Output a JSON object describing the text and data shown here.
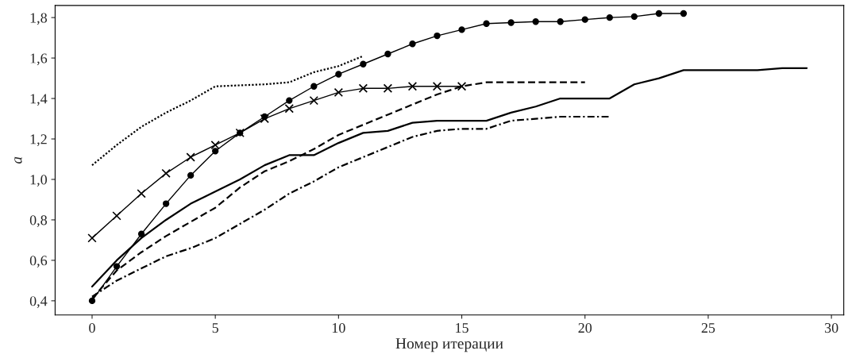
{
  "chart_data": {
    "type": "line",
    "xlabel": "Номер итерации",
    "ylabel": "a",
    "xlim": [
      -1.5,
      30.5
    ],
    "ylim": [
      0.33,
      1.86
    ],
    "xticks": [
      0,
      5,
      10,
      15,
      20,
      25,
      30
    ],
    "yticks": [
      {
        "value": 0.4,
        "label": "0,4"
      },
      {
        "value": 0.6,
        "label": "0,6"
      },
      {
        "value": 0.8,
        "label": "0,8"
      },
      {
        "value": 1.0,
        "label": "1,0"
      },
      {
        "value": 1.2,
        "label": "1,2"
      },
      {
        "value": 1.4,
        "label": "1,4"
      },
      {
        "value": 1.6,
        "label": "1,6"
      },
      {
        "value": 1.8,
        "label": "1,8"
      }
    ],
    "grid": false,
    "legend": false,
    "series": [
      {
        "color": "#000000",
        "marker": "circle",
        "line_style": "solid",
        "x": [
          0,
          1,
          2,
          3,
          4,
          5,
          6,
          7,
          8,
          9,
          10,
          11,
          12,
          13,
          14,
          15,
          16,
          17,
          18,
          19,
          20,
          21,
          22,
          23,
          24
        ],
        "values": [
          0.4,
          0.57,
          0.73,
          0.88,
          1.02,
          1.14,
          1.23,
          1.31,
          1.39,
          1.46,
          1.52,
          1.57,
          1.62,
          1.67,
          1.71,
          1.74,
          1.77,
          1.775,
          1.78,
          1.78,
          1.79,
          1.8,
          1.805,
          1.82,
          1.82
        ]
      },
      {
        "color": "#000000",
        "marker": "cross",
        "line_style": "solid",
        "x": [
          0,
          1,
          2,
          3,
          4,
          5,
          6,
          7,
          8,
          9,
          10,
          11,
          12,
          13,
          14,
          15
        ],
        "values": [
          0.71,
          0.82,
          0.93,
          1.03,
          1.11,
          1.17,
          1.23,
          1.3,
          1.35,
          1.39,
          1.43,
          1.45,
          1.45,
          1.46,
          1.46,
          1.46
        ]
      },
      {
        "color": "#000000",
        "marker": "none",
        "line_style": "dotted",
        "x": [
          0,
          1,
          2,
          3,
          4,
          5,
          6,
          7,
          8,
          9,
          10,
          11
        ],
        "values": [
          1.07,
          1.17,
          1.26,
          1.33,
          1.39,
          1.46,
          1.465,
          1.47,
          1.48,
          1.53,
          1.56,
          1.61
        ]
      },
      {
        "color": "#000000",
        "marker": "none",
        "line_style": "solid",
        "x": [
          0,
          1,
          2,
          3,
          4,
          5,
          6,
          7,
          8,
          9,
          10,
          11,
          12,
          13,
          14,
          15,
          16,
          17,
          18,
          19,
          20,
          21,
          22,
          23,
          24,
          25,
          26,
          27,
          28,
          29
        ],
        "values": [
          0.47,
          0.6,
          0.71,
          0.8,
          0.88,
          0.94,
          1.0,
          1.07,
          1.12,
          1.12,
          1.18,
          1.23,
          1.24,
          1.28,
          1.29,
          1.29,
          1.29,
          1.33,
          1.36,
          1.4,
          1.4,
          1.4,
          1.47,
          1.5,
          1.54,
          1.54,
          1.54,
          1.54,
          1.55,
          1.55
        ]
      },
      {
        "color": "#000000",
        "marker": "none",
        "line_style": "dashed",
        "x": [
          0,
          1,
          2,
          3,
          4,
          5,
          6,
          7,
          8,
          9,
          10,
          11,
          12,
          13,
          14,
          15,
          16,
          17,
          18,
          19,
          20
        ],
        "values": [
          0.41,
          0.55,
          0.64,
          0.72,
          0.79,
          0.86,
          0.96,
          1.04,
          1.09,
          1.15,
          1.22,
          1.27,
          1.32,
          1.37,
          1.42,
          1.46,
          1.48,
          1.48,
          1.48,
          1.48,
          1.48
        ]
      },
      {
        "color": "#000000",
        "marker": "none",
        "line_style": "dashdot",
        "x": [
          0,
          1,
          2,
          3,
          4,
          5,
          6,
          7,
          8,
          9,
          10,
          11,
          12,
          13,
          14,
          15,
          16,
          17,
          18,
          19,
          20,
          21
        ],
        "values": [
          0.42,
          0.5,
          0.56,
          0.62,
          0.66,
          0.71,
          0.78,
          0.85,
          0.93,
          0.99,
          1.06,
          1.11,
          1.16,
          1.21,
          1.24,
          1.25,
          1.25,
          1.29,
          1.3,
          1.31,
          1.31,
          1.31
        ]
      }
    ]
  }
}
